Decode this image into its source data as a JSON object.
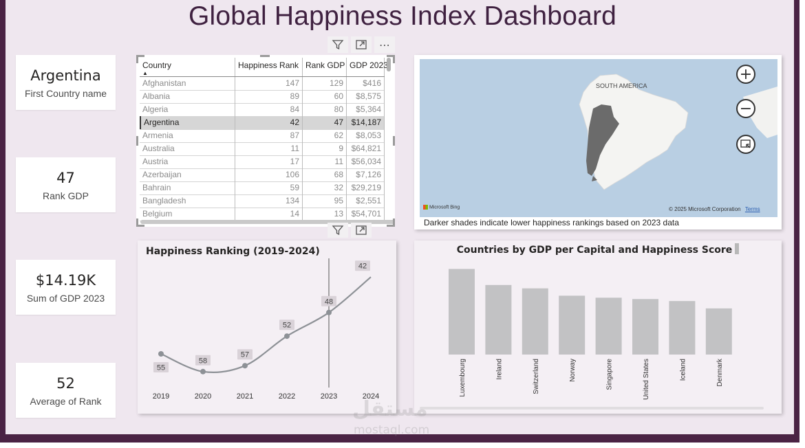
{
  "title": "Global Happiness Index Dashboard",
  "cards": [
    {
      "value": "Argentina",
      "label": "First Country name"
    },
    {
      "value": "47",
      "label": "Rank GDP"
    },
    {
      "value": "$14.19K",
      "label": "Sum of GDP 2023"
    },
    {
      "value": "52",
      "label": "Average of Rank"
    }
  ],
  "table": {
    "columns": [
      "Country",
      "Happiness Rank",
      "Rank GDP",
      "GDP 2023"
    ],
    "rows": [
      [
        "Afghanistan",
        "147",
        "129",
        "$416"
      ],
      [
        "Albania",
        "89",
        "60",
        "$8,575"
      ],
      [
        "Algeria",
        "84",
        "80",
        "$5,364"
      ],
      [
        "Argentina",
        "42",
        "47",
        "$14,187"
      ],
      [
        "Armenia",
        "87",
        "62",
        "$8,053"
      ],
      [
        "Australia",
        "11",
        "9",
        "$64,821"
      ],
      [
        "Austria",
        "17",
        "11",
        "$56,034"
      ],
      [
        "Azerbaijan",
        "106",
        "68",
        "$7,126"
      ],
      [
        "Bahrain",
        "59",
        "32",
        "$29,219"
      ],
      [
        "Bangladesh",
        "134",
        "95",
        "$2,551"
      ],
      [
        "Belgium",
        "14",
        "13",
        "$54,701"
      ]
    ],
    "selected_index": 3
  },
  "map": {
    "region_label": "SOUTH AMERICA",
    "bing": "Microsoft Bing",
    "copyright": "© 2025 Microsoft Corporation",
    "terms": "Terms",
    "caption": "Darker shades indicate lower happiness rankings based on 2023 data",
    "zoom_in": "+",
    "zoom_out": "−"
  },
  "icons": {
    "filter": "filter-icon",
    "focus": "focus-mode-icon",
    "more": "⋯",
    "zoom_in": "zoom-in-icon",
    "zoom_out": "zoom-out-icon",
    "select": "select-area-icon"
  },
  "colors": {
    "frame": "#4a2344",
    "canvas": "#efe7ef",
    "title": "#3f2140",
    "bar": "#c2c2c4",
    "line": "#8d9196",
    "argentina": "#6b6b6b"
  },
  "chart_data": [
    {
      "type": "line",
      "title": "Happiness Ranking (2019-2024)",
      "x": [
        "2019",
        "2020",
        "2021",
        "2022",
        "2023",
        "2024"
      ],
      "values": [
        55,
        58,
        57,
        52,
        48,
        42
      ],
      "highlight_x": "2023"
    },
    {
      "type": "bar",
      "title": "Countries by GDP per Capital and Happiness Score",
      "categories": [
        "Luxembourg",
        "Ireland",
        "Switzerland",
        "Norway",
        "Singapore",
        "United States",
        "Iceland",
        "Denmark"
      ],
      "values": [
        128,
        104,
        99,
        88,
        85,
        83,
        80,
        69
      ],
      "ylim": [
        0,
        150
      ]
    }
  ]
}
